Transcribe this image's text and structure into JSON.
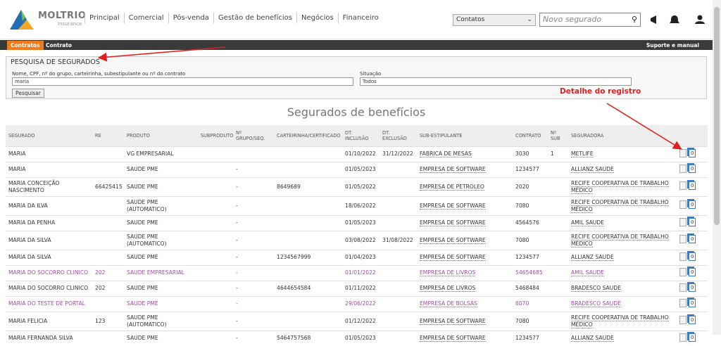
{
  "header": {
    "logo": "MOLTRIO",
    "logo_sub": "Insurance",
    "nav": [
      "Principal",
      "Comercial",
      "Pós-venda",
      "Gestão de benefícios",
      "Negócios",
      "Financeiro"
    ],
    "select": "Contatos",
    "search_placeholder": "Novo segurado"
  },
  "tabs": {
    "items": [
      "Contratos",
      "Contrato"
    ],
    "support": "Suporte e manual"
  },
  "search": {
    "title": "PESQUISA DE SEGURADOS",
    "field_label": "Nome, CPF, nº do grupo, carteirinha, subestipulante ou nº do contrato",
    "field_value": "maria",
    "status_label": "Situação",
    "status_value": "Todos",
    "button": "Pesquisar"
  },
  "annotation": "Detalhe do registro",
  "table": {
    "title": "Segurados de benefícios",
    "headers": [
      "SEGURADO",
      "RE",
      "PRODUTO",
      "SUBPRODUTO",
      "Nº GRUPO/SEQ.",
      "CARTEIRINHA/CERTIFICADO",
      "DT. INCLUSÃO",
      "DT. EXCLUSÃO",
      "SUB-ESTIPULANTE",
      "CONTRATO",
      "Nº SUB",
      "SEGURADORA"
    ],
    "rows": [
      {
        "name": "MARIA",
        "product": "VG EMPRESARIAL",
        "incl": "01/10/2022",
        "excl": "31/12/2022",
        "sub": "FABRICA DE MESAS",
        "contract": "3030",
        "nsub": "1",
        "insurer": "METLIFE",
        "docs": "0"
      },
      {
        "name": "MARIA",
        "product": "SAUDE PME",
        "group": "-",
        "incl": "01/05/2023",
        "sub": "EMPRESA DE SOFTWARE",
        "contract": "1234577",
        "insurer": "ALLIANZ SAUDE",
        "docs": "0"
      },
      {
        "name": "MARIA CONCEIÇÃO NASCIMENTO",
        "re": "66425415",
        "product": "SAUDE PME",
        "group": "-",
        "card": "8649689",
        "incl": "01/05/2022",
        "sub": "EMPRESA DE PETROLEO",
        "contract": "2020",
        "insurer": "RECIFE COOPERATIVA DE TRABALHO MÉDICO",
        "docs": "0"
      },
      {
        "name": "MARIA DA ILVA",
        "product": "SAUDE PME (AUTOMATICO)",
        "group": "-",
        "incl": "18/06/2022",
        "sub": "EMPRESA DE SOFTWARE",
        "contract": "7080",
        "insurer": "RECIFE COOPERATIVA DE TRABALHO MÉDICO",
        "docs": "0"
      },
      {
        "name": "MARIA DA PENHA",
        "product": "SAUDE PME",
        "group": "-",
        "incl": "01/05/2023",
        "sub": "EMPRESA DE SOFTWARE",
        "contract": "4564576",
        "insurer": "AMIL SAUDE",
        "docs": "0"
      },
      {
        "name": "MARIA DA SILVA",
        "product": "SAUDE PME (AUTOMATICO)",
        "group": "-",
        "incl": "03/08/2022",
        "excl": "31/08/2022",
        "sub": "EMPRESA DE SOFTWARE",
        "contract": "7080",
        "insurer": "RECIFE COOPERATIVA DE TRABALHO MÉDICO",
        "docs": "0"
      },
      {
        "name": "MARIA DA SILVA",
        "product": "SAUDE PME",
        "group": "-",
        "card": "1234567999",
        "incl": "01/04/2023",
        "sub": "EMPRESA DE SOFTWARE",
        "contract": "1234577",
        "insurer": "ALLIANZ SAUDE",
        "docs": "0"
      },
      {
        "name": "MARIA DO SOCORRO CLINICO",
        "re": "202",
        "product": "SAUDE EMPRESARIAL",
        "group": "-",
        "incl": "01/01/2022",
        "sub": "EMPRESA DE LIVROS",
        "contract": "54654685",
        "insurer": "AMIL SAUDE",
        "docs": "0",
        "color": "#9b4f9b"
      },
      {
        "name": "MARIA DO SOCORRO CLINICO",
        "re": "202",
        "product": "SAUDE PME",
        "group": "-",
        "card": "4644654584",
        "incl": "01/11/2022",
        "sub": "EMPRESA DE LIVROS",
        "contract": "5468484",
        "insurer": "BRADESCO SAUDE",
        "docs": "0"
      },
      {
        "name": "MARIA DO TESTE DE PORTAL",
        "product": "SAUDE PME",
        "group": "-",
        "incl": "29/06/2022",
        "sub": "EMPRESA DE BOLSAS",
        "contract": "6070",
        "insurer": "BRADESCO SAUDE",
        "docs": "0",
        "color": "#9b4f9b"
      },
      {
        "name": "MARIA FELICIA",
        "re": "123",
        "product": "SAUDE PME (AUTOMATICO)",
        "group": "-",
        "incl": "01/12/2022",
        "sub": "EMPRESA DE SOFTWARE",
        "contract": "7080",
        "insurer": "RECIFE COOPERATIVA DE TRABALHO MÉDICO",
        "docs": "0"
      },
      {
        "name": "MARIA FERNANDA SILVA",
        "product": "SAUDE PME",
        "group": "-",
        "card": "5464757568",
        "incl": "01/05/2023",
        "sub": "EMPRESA DE SOFTWARE",
        "contract": "1234577",
        "insurer": "ALLIANZ SAUDE",
        "docs": "0"
      }
    ]
  }
}
